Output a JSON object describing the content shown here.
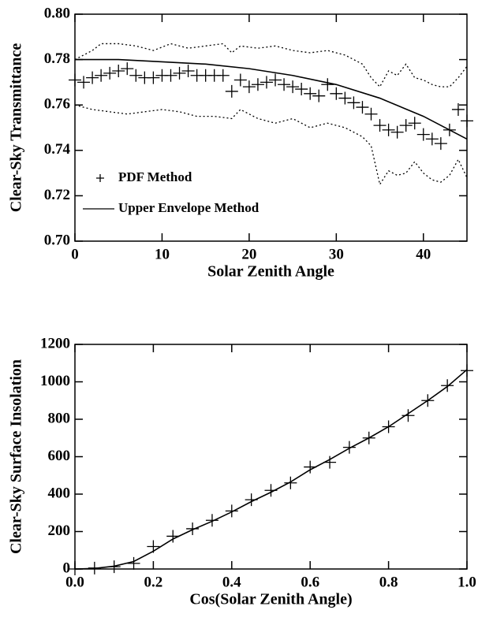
{
  "chart_data": [
    {
      "type": "line",
      "xlabel": "Solar Zenith Angle",
      "ylabel": "Clear-Sky Transmittance",
      "xlim": [
        0,
        45
      ],
      "ylim": [
        0.7,
        0.8
      ],
      "xticks": [
        0,
        10,
        20,
        30,
        40
      ],
      "yticks": [
        {
          "value": 0.7,
          "label": "0.70"
        },
        {
          "value": 0.72,
          "label": "0.72"
        },
        {
          "value": 0.74,
          "label": "0.74"
        },
        {
          "value": 0.76,
          "label": "0.76"
        },
        {
          "value": 0.78,
          "label": "0.78"
        },
        {
          "value": 0.8,
          "label": "0.80"
        }
      ],
      "legend": "lower left",
      "series": [
        {
          "name": "PDF Method",
          "style": "markers",
          "color": "#000000",
          "x": [
            0,
            1,
            2,
            3,
            4,
            5,
            6,
            7,
            8,
            9,
            10,
            11,
            12,
            13,
            14,
            15,
            16,
            17,
            18,
            19,
            20,
            21,
            22,
            23,
            24,
            25,
            26,
            27,
            28,
            29,
            30,
            31,
            32,
            33,
            34,
            35,
            36,
            37,
            38,
            39,
            40,
            41,
            42,
            43,
            44,
            45
          ],
          "values": [
            0.771,
            0.77,
            0.772,
            0.773,
            0.774,
            0.775,
            0.776,
            0.773,
            0.772,
            0.772,
            0.773,
            0.773,
            0.774,
            0.775,
            0.773,
            0.773,
            0.773,
            0.773,
            0.766,
            0.771,
            0.768,
            0.769,
            0.77,
            0.771,
            0.769,
            0.768,
            0.767,
            0.765,
            0.764,
            0.769,
            0.765,
            0.763,
            0.761,
            0.759,
            0.756,
            0.751,
            0.749,
            0.748,
            0.751,
            0.752,
            0.747,
            0.745,
            0.743,
            0.749,
            0.758,
            0.753
          ]
        },
        {
          "name": "Upper Envelope Method",
          "style": "solid",
          "color": "#000000",
          "x": [
            0,
            5,
            10,
            15,
            20,
            25,
            30,
            35,
            40,
            45
          ],
          "values": [
            0.78,
            0.78,
            0.779,
            0.778,
            0.776,
            0.773,
            0.769,
            0.763,
            0.755,
            0.745
          ]
        },
        {
          "style": "dotted",
          "color": "#000000",
          "x": [
            0,
            2,
            3,
            5,
            7,
            9,
            11,
            13,
            15,
            17,
            18,
            19,
            21,
            23,
            25,
            27,
            29,
            31,
            33,
            34,
            35,
            36,
            37,
            38,
            39,
            40,
            41,
            42,
            43,
            44,
            45
          ],
          "values": [
            0.78,
            0.784,
            0.787,
            0.787,
            0.786,
            0.784,
            0.787,
            0.785,
            0.786,
            0.787,
            0.783,
            0.786,
            0.785,
            0.786,
            0.784,
            0.783,
            0.784,
            0.782,
            0.778,
            0.772,
            0.768,
            0.775,
            0.773,
            0.778,
            0.772,
            0.771,
            0.769,
            0.768,
            0.768,
            0.772,
            0.777
          ]
        },
        {
          "style": "dotted",
          "color": "#000000",
          "x": [
            0,
            2,
            4,
            6,
            8,
            10,
            12,
            14,
            16,
            18,
            19,
            21,
            23,
            25,
            27,
            29,
            31,
            33,
            34,
            35,
            36,
            37,
            38,
            39,
            40,
            41,
            42,
            43,
            44,
            45
          ],
          "values": [
            0.76,
            0.758,
            0.757,
            0.756,
            0.757,
            0.758,
            0.757,
            0.755,
            0.755,
            0.754,
            0.758,
            0.754,
            0.752,
            0.754,
            0.75,
            0.752,
            0.75,
            0.746,
            0.742,
            0.725,
            0.731,
            0.729,
            0.73,
            0.735,
            0.73,
            0.727,
            0.726,
            0.729,
            0.736,
            0.728
          ]
        }
      ]
    },
    {
      "type": "line",
      "xlabel": "Cos(Solar Zenith Angle)",
      "ylabel": "Clear-Sky Surface Insolation",
      "xlim": [
        0,
        1
      ],
      "ylim": [
        0,
        1200
      ],
      "xticks": [
        {
          "value": 0,
          "label": "0.0"
        },
        {
          "value": 0.2,
          "label": "0.2"
        },
        {
          "value": 0.4,
          "label": "0.4"
        },
        {
          "value": 0.6,
          "label": "0.6"
        },
        {
          "value": 0.8,
          "label": "0.8"
        },
        {
          "value": 1,
          "label": "1.0"
        }
      ],
      "yticks": [
        0,
        200,
        400,
        600,
        800,
        1000,
        1200
      ],
      "series": [
        {
          "style": "markers",
          "color": "#000000",
          "x": [
            0,
            0.05,
            0.1,
            0.15,
            0.2,
            0.25,
            0.3,
            0.35,
            0.4,
            0.45,
            0.5,
            0.55,
            0.6,
            0.65,
            0.7,
            0.75,
            0.8,
            0.85,
            0.9,
            0.95,
            1
          ],
          "values": [
            0,
            5,
            12,
            30,
            120,
            175,
            215,
            260,
            310,
            370,
            420,
            460,
            545,
            570,
            650,
            700,
            760,
            820,
            900,
            980,
            1060
          ]
        },
        {
          "style": "solid",
          "color": "#000000",
          "x": [
            0,
            0.05,
            0.1,
            0.15,
            0.2,
            0.25,
            0.3,
            0.35,
            0.4,
            0.45,
            0.5,
            0.55,
            0.6,
            0.65,
            0.7,
            0.75,
            0.8,
            0.85,
            0.9,
            0.95,
            1
          ],
          "values": [
            0,
            3,
            15,
            40,
            95,
            160,
            210,
            255,
            305,
            360,
            410,
            465,
            530,
            585,
            645,
            700,
            760,
            830,
            900,
            975,
            1065
          ]
        }
      ]
    }
  ]
}
